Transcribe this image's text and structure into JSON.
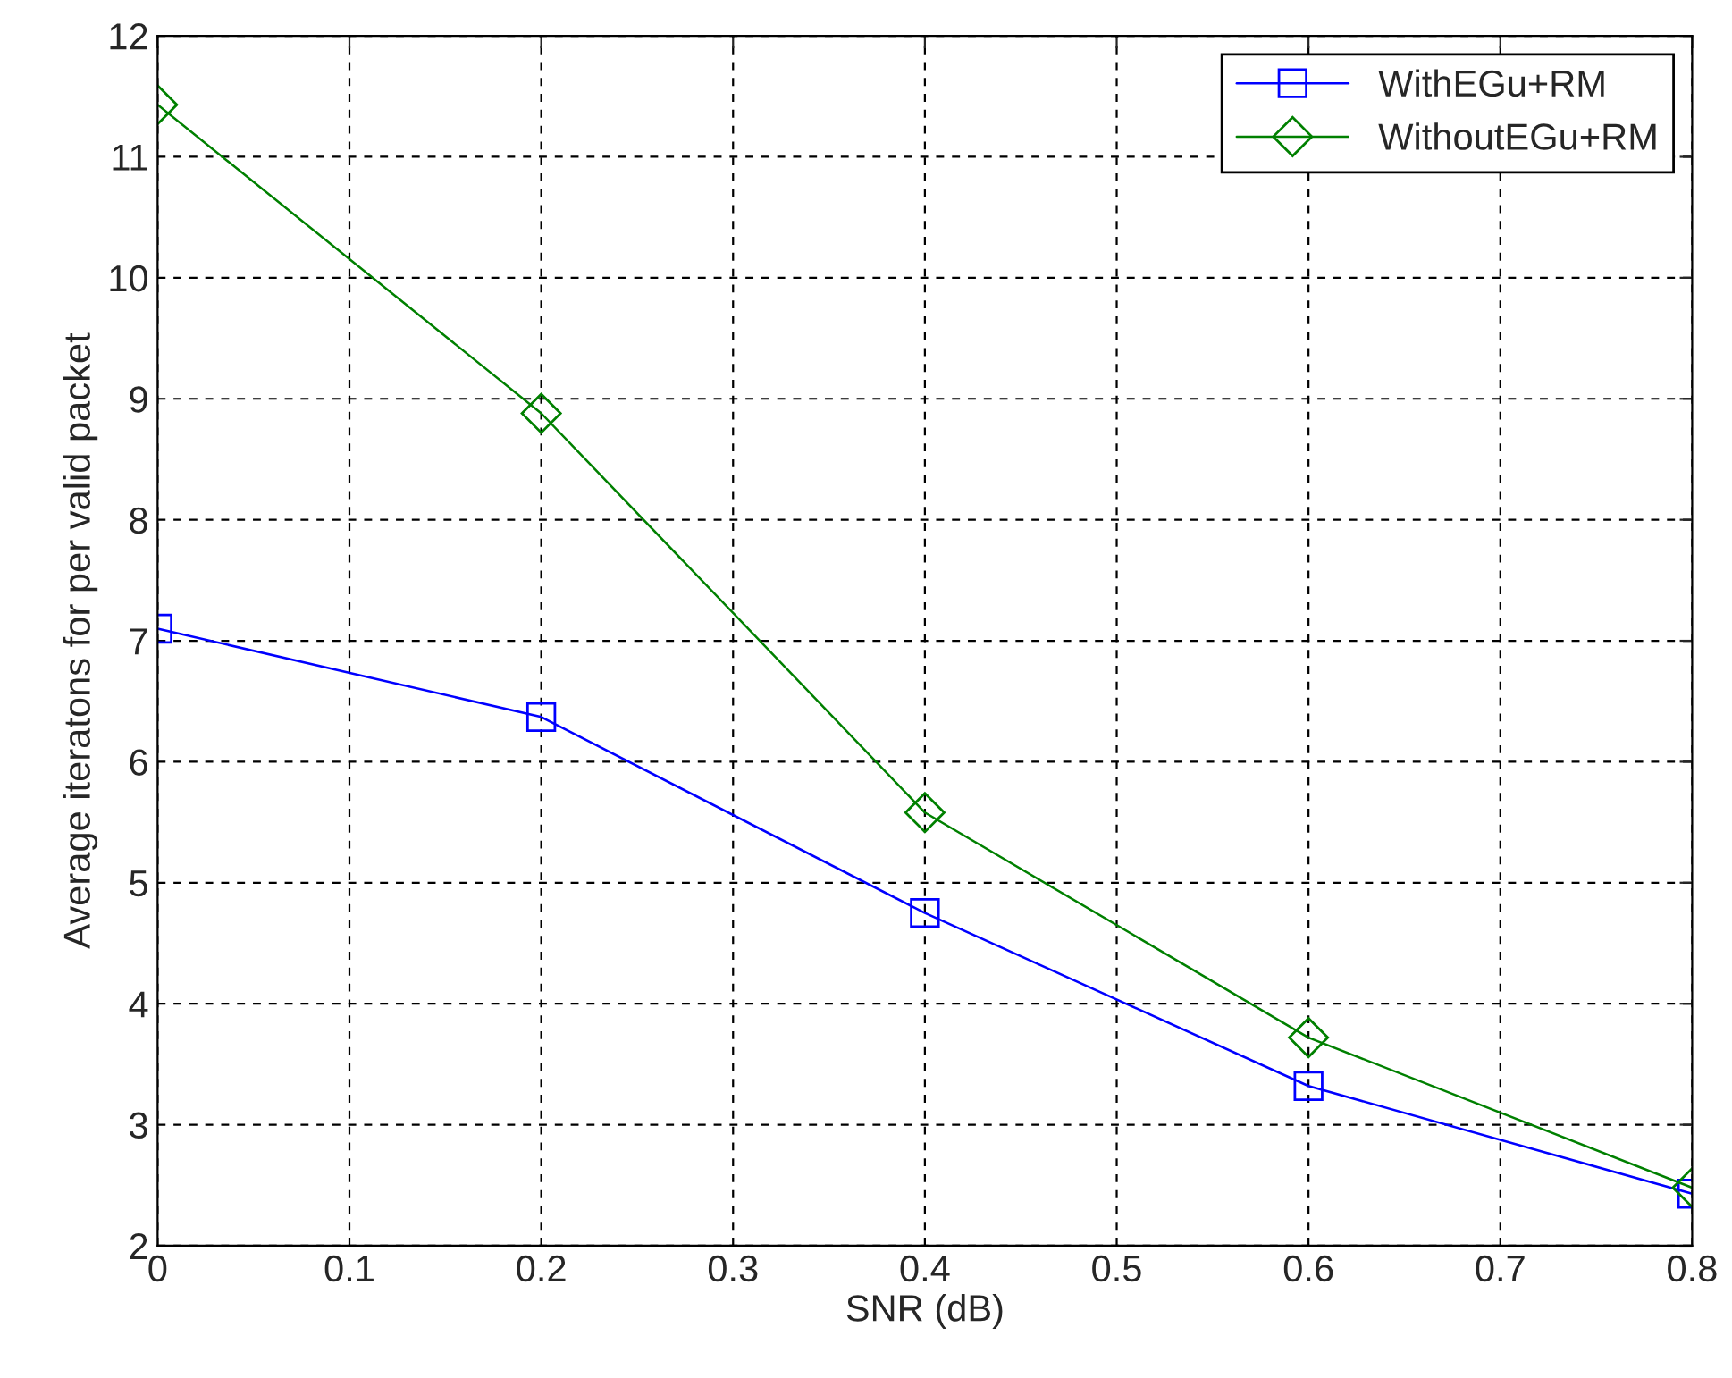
{
  "chart_data": {
    "type": "line",
    "xlabel": "SNR (dB)",
    "ylabel": "Average iteratons for per valid packet",
    "x": [
      0,
      0.2,
      0.4,
      0.6,
      0.8
    ],
    "series": [
      {
        "name": "WithEGu+RM",
        "color": "#0000ff",
        "marker": "square",
        "values": [
          7.1,
          6.37,
          4.75,
          3.32,
          2.43
        ]
      },
      {
        "name": "WithoutEGu+RM",
        "color": "#008000",
        "marker": "diamond",
        "values": [
          11.43,
          8.88,
          5.58,
          3.72,
          2.48
        ]
      }
    ],
    "xlim": [
      0,
      0.8
    ],
    "xticks": [
      0,
      0.1,
      0.2,
      0.3,
      0.4,
      0.5,
      0.6,
      0.7,
      0.8
    ],
    "ylim": [
      2,
      12
    ],
    "yticks": [
      2,
      3,
      4,
      5,
      6,
      7,
      8,
      9,
      10,
      11,
      12
    ],
    "grid": true,
    "legend": "top right",
    "line_style": "solid"
  }
}
